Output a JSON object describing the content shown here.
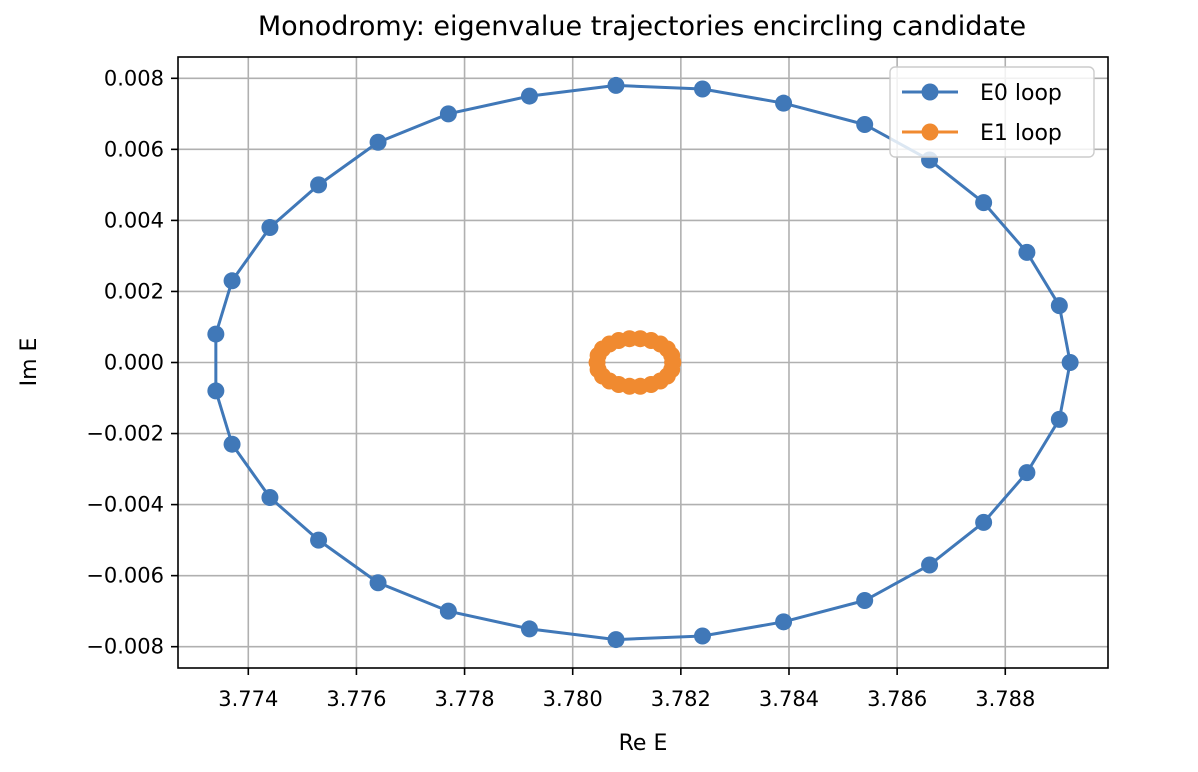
{
  "chart_data": {
    "type": "line",
    "title": "Monodromy: eigenvalue trajectories encircling candidate",
    "xlabel": "Re E",
    "ylabel": "Im E",
    "xlim": [
      3.7727,
      3.7899
    ],
    "ylim": [
      -0.0086,
      0.0086
    ],
    "xticks": [
      3.774,
      3.776,
      3.778,
      3.78,
      3.782,
      3.784,
      3.786,
      3.788
    ],
    "xtick_labels": [
      "3.774",
      "3.776",
      "3.778",
      "3.780",
      "3.782",
      "3.784",
      "3.786",
      "3.788"
    ],
    "yticks": [
      -0.008,
      -0.006,
      -0.004,
      -0.002,
      0.0,
      0.002,
      0.004,
      0.006,
      0.008
    ],
    "ytick_labels": [
      "−0.008",
      "−0.006",
      "−0.004",
      "−0.002",
      "0.000",
      "0.002",
      "0.004",
      "0.006",
      "0.008"
    ],
    "grid": true,
    "legend_position": "top-right",
    "series": [
      {
        "name": "E0 loop",
        "color": "#4078b8",
        "marker": "circle",
        "points": [
          [
            3.7892,
            0.0
          ],
          [
            3.789,
            0.0016
          ],
          [
            3.7884,
            0.0031
          ],
          [
            3.7876,
            0.0045
          ],
          [
            3.7866,
            0.0057
          ],
          [
            3.7854,
            0.0067
          ],
          [
            3.7839,
            0.0073
          ],
          [
            3.7824,
            0.0077
          ],
          [
            3.7808,
            0.0078
          ],
          [
            3.7792,
            0.0075
          ],
          [
            3.7777,
            0.007
          ],
          [
            3.7764,
            0.0062
          ],
          [
            3.7753,
            0.005
          ],
          [
            3.7744,
            0.0038
          ],
          [
            3.7737,
            0.0023
          ],
          [
            3.7734,
            0.0008
          ],
          [
            3.7734,
            -0.0008
          ],
          [
            3.7737,
            -0.0023
          ],
          [
            3.7744,
            -0.0038
          ],
          [
            3.7753,
            -0.005
          ],
          [
            3.7764,
            -0.0062
          ],
          [
            3.7777,
            -0.007
          ],
          [
            3.7792,
            -0.0075
          ],
          [
            3.7808,
            -0.0078
          ],
          [
            3.7824,
            -0.0077
          ],
          [
            3.7839,
            -0.0073
          ],
          [
            3.7854,
            -0.0067
          ],
          [
            3.7866,
            -0.0057
          ],
          [
            3.7876,
            -0.0045
          ],
          [
            3.7884,
            -0.0031
          ],
          [
            3.789,
            -0.0016
          ],
          [
            3.7892,
            0.0
          ]
        ]
      },
      {
        "name": "E1 loop",
        "color": "#f08a30",
        "marker": "circle",
        "points": [
          [
            3.78185,
            0.0
          ],
          [
            3.78183,
            0.0002
          ],
          [
            3.78175,
            0.00038
          ],
          [
            3.78162,
            0.00052
          ],
          [
            3.78145,
            0.00062
          ],
          [
            3.78125,
            0.00067
          ],
          [
            3.78105,
            0.00067
          ],
          [
            3.78085,
            0.00062
          ],
          [
            3.78068,
            0.00052
          ],
          [
            3.78055,
            0.00038
          ],
          [
            3.78047,
            0.0002
          ],
          [
            3.78045,
            0.0
          ],
          [
            3.78047,
            -0.0002
          ],
          [
            3.78055,
            -0.00038
          ],
          [
            3.78068,
            -0.00052
          ],
          [
            3.78085,
            -0.00062
          ],
          [
            3.78105,
            -0.00067
          ],
          [
            3.78125,
            -0.00067
          ],
          [
            3.78145,
            -0.00062
          ],
          [
            3.78162,
            -0.00052
          ],
          [
            3.78175,
            -0.00038
          ],
          [
            3.78183,
            -0.0002
          ],
          [
            3.78185,
            0.0
          ]
        ]
      }
    ]
  }
}
